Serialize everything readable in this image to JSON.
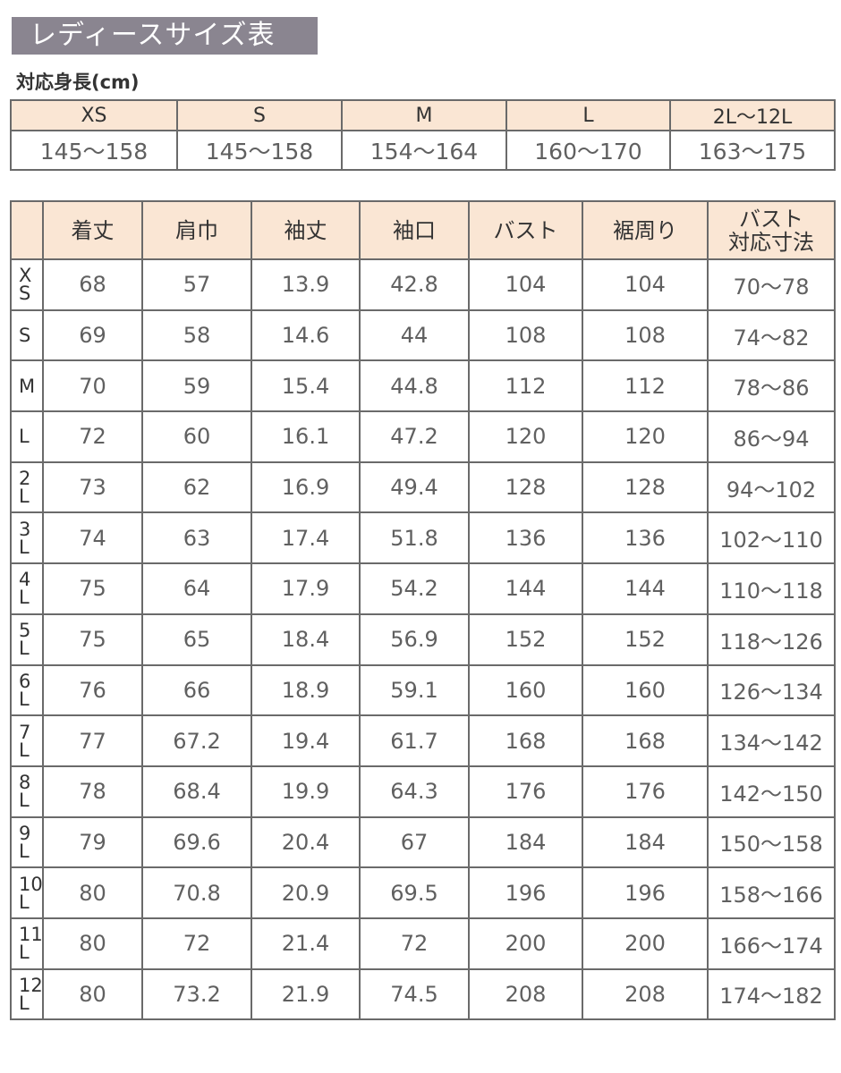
{
  "title": "レディースサイズ表",
  "height_label": "対応身長(cm)",
  "height_table": {
    "sizes": [
      "XS",
      "S",
      "M",
      "L",
      "2L～12L"
    ],
    "ranges": [
      "145～158",
      "145～158",
      "154～164",
      "160～170",
      "163～175"
    ]
  },
  "size_table": {
    "headers": [
      "",
      "着丈",
      "肩巾",
      "袖丈",
      "袖口",
      "バスト",
      "裾周り",
      "バスト\n対応寸法"
    ],
    "rows": [
      {
        "size": "X\nS",
        "values": [
          "68",
          "57",
          "13.9",
          "42.8",
          "104",
          "104",
          "70～78"
        ]
      },
      {
        "size": "S",
        "values": [
          "69",
          "58",
          "14.6",
          "44",
          "108",
          "108",
          "74～82"
        ]
      },
      {
        "size": "M",
        "values": [
          "70",
          "59",
          "15.4",
          "44.8",
          "112",
          "112",
          "78～86"
        ]
      },
      {
        "size": "L",
        "values": [
          "72",
          "60",
          "16.1",
          "47.2",
          "120",
          "120",
          "86～94"
        ]
      },
      {
        "size": "2\nL",
        "values": [
          "73",
          "62",
          "16.9",
          "49.4",
          "128",
          "128",
          "94～102"
        ]
      },
      {
        "size": "3\nL",
        "values": [
          "74",
          "63",
          "17.4",
          "51.8",
          "136",
          "136",
          "102～110"
        ]
      },
      {
        "size": "4\nL",
        "values": [
          "75",
          "64",
          "17.9",
          "54.2",
          "144",
          "144",
          "110～118"
        ]
      },
      {
        "size": "5\nL",
        "values": [
          "75",
          "65",
          "18.4",
          "56.9",
          "152",
          "152",
          "118～126"
        ]
      },
      {
        "size": "6\nL",
        "values": [
          "76",
          "66",
          "18.9",
          "59.1",
          "160",
          "160",
          "126～134"
        ]
      },
      {
        "size": "7\nL",
        "values": [
          "77",
          "67.2",
          "19.4",
          "61.7",
          "168",
          "168",
          "134～142"
        ]
      },
      {
        "size": "8\nL",
        "values": [
          "78",
          "68.4",
          "19.9",
          "64.3",
          "176",
          "176",
          "142～150"
        ]
      },
      {
        "size": "9\nL",
        "values": [
          "79",
          "69.6",
          "20.4",
          "67",
          "184",
          "184",
          "150～158"
        ]
      },
      {
        "size": "10\nL",
        "values": [
          "80",
          "70.8",
          "20.9",
          "69.5",
          "196",
          "196",
          "158～166"
        ]
      },
      {
        "size": "11\nL",
        "values": [
          "80",
          "72",
          "21.4",
          "72",
          "200",
          "200",
          "166～174"
        ]
      },
      {
        "size": "12\nL",
        "values": [
          "80",
          "73.2",
          "21.9",
          "74.5",
          "208",
          "208",
          "174～182"
        ]
      }
    ]
  },
  "colors": {
    "title_bg": "#8a8590",
    "header_bg": "#fae6d4",
    "border": "#6a6a6a",
    "text": "#606060"
  }
}
